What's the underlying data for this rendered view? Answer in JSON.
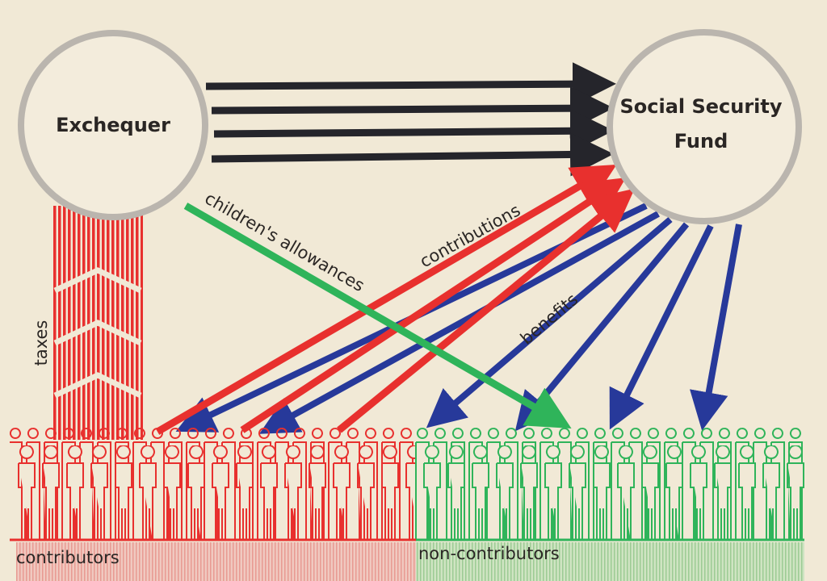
{
  "nodes": [
    {
      "label": "Exchequer"
    },
    {
      "label_lines": [
        "Social Security",
        "Fund"
      ]
    }
  ],
  "flows": {
    "taxes": "taxes",
    "children_allowances": "children's allowances",
    "contributions": "contributions",
    "benefits": "benefits"
  },
  "groups": {
    "contributors": "contributors",
    "non_contributors": "non-contributors"
  }
}
